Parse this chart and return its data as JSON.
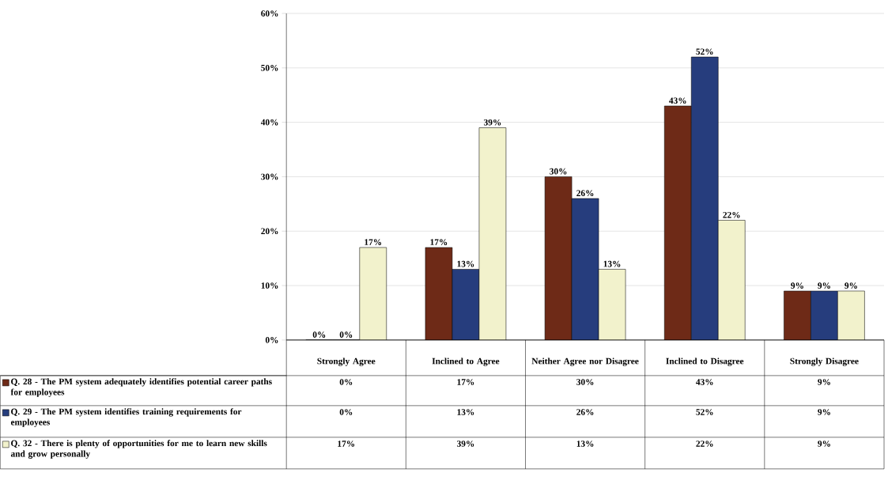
{
  "chart_data": {
    "type": "bar",
    "categories": [
      "Strongly Agree",
      "Inclined to Agree",
      "Neither Agree nor Disagree",
      "Inclined to Disagree",
      "Strongly Disagree"
    ],
    "series": [
      {
        "name": "Q. 28 - The PM system adequately identifies potential career paths for employees",
        "color": "#6e2a17",
        "values": [
          0,
          17,
          30,
          43,
          9
        ],
        "value_labels": [
          "0%",
          "17%",
          "30%",
          "43%",
          "9%"
        ]
      },
      {
        "name": "Q. 29 - The PM system identifies training requirements for employees",
        "color": "#263d7d",
        "values": [
          0,
          13,
          26,
          52,
          9
        ],
        "value_labels": [
          "0%",
          "13%",
          "26%",
          "52%",
          "9%"
        ]
      },
      {
        "name": "Q. 32 - There is plenty of opportunities for me to learn new skills and grow personally",
        "color": "#f2f2cc",
        "values": [
          17,
          39,
          13,
          22,
          9
        ],
        "value_labels": [
          "17%",
          "39%",
          "13%",
          "22%",
          "9%"
        ]
      }
    ],
    "ylim": [
      0,
      60
    ],
    "yticks": [
      {
        "value": 0,
        "label": "0%"
      },
      {
        "value": 10,
        "label": "10%"
      },
      {
        "value": 20,
        "label": "20%"
      },
      {
        "value": 30,
        "label": "30%"
      },
      {
        "value": 40,
        "label": "40%"
      },
      {
        "value": 50,
        "label": "50%"
      },
      {
        "value": 60,
        "label": "60%"
      }
    ],
    "grid": "y",
    "legend": "bottom left"
  }
}
